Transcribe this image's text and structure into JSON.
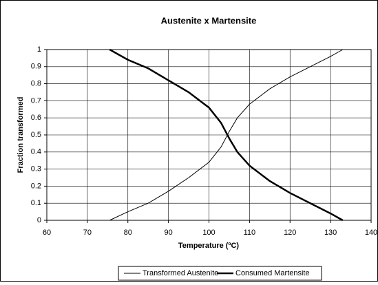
{
  "chart_data": {
    "type": "line",
    "title": "Austenite x Martensite",
    "x_label": "Temperature (ºC)",
    "y_label": "Fraction transformed",
    "x": [
      75.5,
      80,
      85,
      90,
      95,
      100,
      103,
      105,
      107,
      110,
      115,
      120,
      125,
      130,
      133
    ],
    "series": [
      {
        "name": "Transformed Austenite",
        "color": "#000000",
        "line_width": 1,
        "values": [
          0,
          0.05,
          0.1,
          0.17,
          0.25,
          0.34,
          0.43,
          0.52,
          0.6,
          0.68,
          0.77,
          0.84,
          0.9,
          0.96,
          1
        ]
      },
      {
        "name": "Consumed Martensite",
        "color": "#000000",
        "line_width": 2.5,
        "values": [
          1,
          0.94,
          0.89,
          0.82,
          0.75,
          0.66,
          0.57,
          0.48,
          0.4,
          0.32,
          0.23,
          0.16,
          0.1,
          0.04,
          0
        ]
      }
    ],
    "xlim": [
      60,
      140
    ],
    "xticks": [
      60,
      70,
      80,
      90,
      100,
      110,
      120,
      130,
      140
    ],
    "ylim": [
      0,
      1
    ],
    "yticks": [
      0,
      0.1,
      0.2,
      0.3,
      0.4,
      0.5,
      0.6,
      0.7,
      0.8,
      0.9,
      1
    ],
    "grid": true,
    "legend": "bottom"
  }
}
